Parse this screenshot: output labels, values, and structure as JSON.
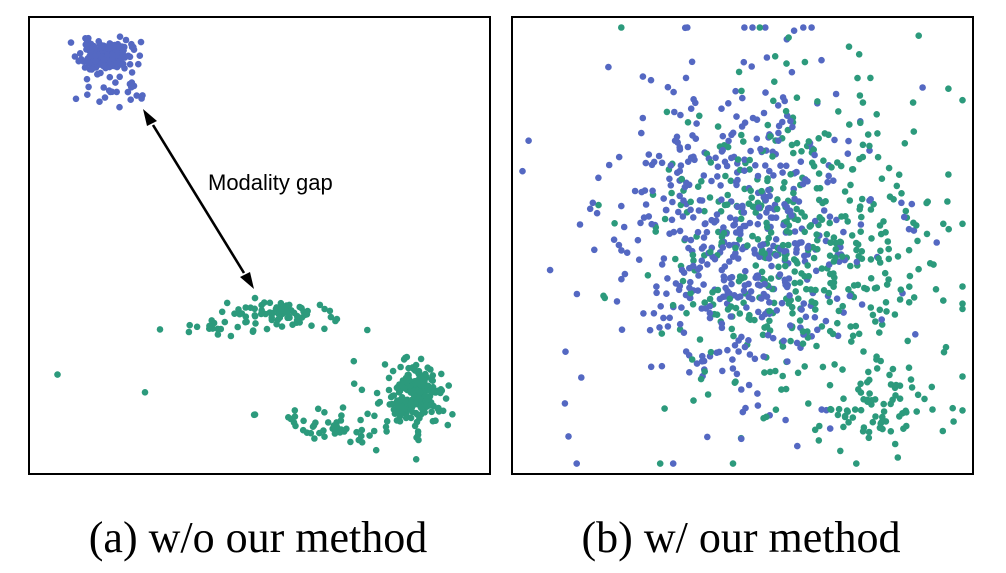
{
  "colors": {
    "image": "#5468c2",
    "text": "#2c9a7c",
    "frame": "#000000",
    "background": "#ffffff"
  },
  "chart_data": [
    {
      "type": "scatter",
      "title": "",
      "caption": "(a) w/o our method",
      "annotation": "Modality gap",
      "xlim": [
        0,
        100
      ],
      "ylim": [
        0,
        100
      ],
      "grid": false,
      "series": [
        {
          "color": "#5468c2",
          "clusters": [
            {
              "n": 160,
              "cx": 15.5,
              "cy": 92.5,
              "sx": 2.8,
              "sy": 1.8,
              "seed": 11
            },
            {
              "n": 22,
              "cx": 17.0,
              "cy": 84.5,
              "sx": 3.6,
              "sy": 1.4,
              "seed": 12
            }
          ]
        },
        {
          "color": "#2c9a7c",
          "clusters": [
            {
              "n": 150,
              "cx": 85.5,
              "cy": 17.0,
              "sx": 2.6,
              "sy": 3.0,
              "seed": 21
            },
            {
              "n": 75,
              "cx": 82.0,
              "cy": 16.0,
              "sx": 3.5,
              "sy": 4.2,
              "seed": 22
            },
            {
              "n": 70,
              "cx": 54.0,
              "cy": 34.5,
              "sx": 6.0,
              "sy": 1.8,
              "seed": 23
            },
            {
              "n": 18,
              "cx": 39.0,
              "cy": 32.0,
              "sx": 5.5,
              "sy": 1.5,
              "seed": 24
            },
            {
              "n": 45,
              "cx": 64.5,
              "cy": 9.0,
              "sx": 6.0,
              "sy": 2.2,
              "seed": 25
            }
          ],
          "points": [
            [
              5,
              21
            ],
            [
              24.5,
              17
            ],
            [
              49,
              12
            ],
            [
              71,
              24
            ],
            [
              74,
              31
            ],
            [
              76,
              4
            ]
          ]
        }
      ]
    },
    {
      "type": "scatter",
      "title": "",
      "caption": "(b) w/ our method",
      "xlim": [
        0,
        100
      ],
      "ylim": [
        0,
        100
      ],
      "grid": false,
      "series": [
        {
          "color": "#5468c2",
          "clusters": [
            {
              "n": 520,
              "cx": 50,
              "cy": 52,
              "sx": 15,
              "sy": 19,
              "seed": 31
            }
          ]
        },
        {
          "color": "#2c9a7c",
          "clusters": [
            {
              "n": 480,
              "cx": 64,
              "cy": 50,
              "sx": 16,
              "sy": 20,
              "seed": 41
            },
            {
              "n": 60,
              "cx": 80,
              "cy": 14,
              "sx": 7,
              "sy": 4,
              "seed": 42
            }
          ]
        }
      ]
    }
  ]
}
